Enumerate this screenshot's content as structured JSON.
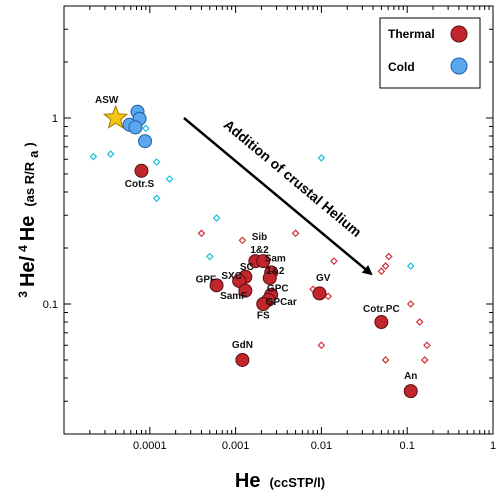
{
  "chart_data": {
    "type": "scatter",
    "x_scale": "log",
    "y_scale": "log",
    "xlim": [
      1e-05,
      1
    ],
    "ylim": [
      0.02,
      4
    ],
    "grid": false,
    "legend_position": "top-right",
    "x_ticks": [
      {
        "value": 0.0001,
        "label": "0.0001"
      },
      {
        "value": 0.001,
        "label": "0.001"
      },
      {
        "value": 0.01,
        "label": "0.01"
      },
      {
        "value": 0.1,
        "label": "0.1"
      },
      {
        "value": 1,
        "label": "1"
      }
    ],
    "y_ticks": [
      {
        "value": 0.1,
        "label": "0.1"
      },
      {
        "value": 1,
        "label": "1"
      }
    ],
    "xlabel": {
      "main": "He",
      "units": "(ccSTP/l)"
    },
    "ylabel": {
      "iso_a": "3",
      "he_a": "He/",
      "iso_b": "4",
      "he_b": "He",
      "units_open": "(as R/R",
      "units_sub": "a",
      "units_close": ")"
    },
    "legend": [
      {
        "label": "Thermal",
        "color": "#c0262b"
      },
      {
        "label": "Cold",
        "color": "#5aa7f0"
      }
    ],
    "asw": {
      "label": "ASW",
      "x": 4e-05,
      "y": 1.0,
      "color": "#f6c614"
    },
    "cold_points": [
      {
        "x": 7.2e-05,
        "y": 1.08
      },
      {
        "x": 7.6e-05,
        "y": 0.99
      },
      {
        "x": 5.8e-05,
        "y": 0.92
      },
      {
        "x": 6.8e-05,
        "y": 0.89
      },
      {
        "x": 8.8e-05,
        "y": 0.75
      }
    ],
    "thermal_points": [
      {
        "x": 8e-05,
        "y": 0.52,
        "label": "Cotr.S"
      },
      {
        "x": 0.0017,
        "y": 0.17,
        "label": ""
      },
      {
        "x": 0.0021,
        "y": 0.17,
        "label": ""
      },
      {
        "x": 0.0026,
        "y": 0.148,
        "label": ""
      },
      {
        "x": 0.0025,
        "y": 0.138,
        "label": ""
      },
      {
        "x": 0.0013,
        "y": 0.14,
        "label": ""
      },
      {
        "x": 0.0011,
        "y": 0.133,
        "label": ""
      },
      {
        "x": 0.0006,
        "y": 0.126,
        "label": ""
      },
      {
        "x": 0.0013,
        "y": 0.118,
        "label": ""
      },
      {
        "x": 0.0026,
        "y": 0.112,
        "label": ""
      },
      {
        "x": 0.0024,
        "y": 0.105,
        "label": ""
      },
      {
        "x": 0.0021,
        "y": 0.1,
        "label": ""
      },
      {
        "x": 0.0095,
        "y": 0.114,
        "label": ""
      },
      {
        "x": 0.05,
        "y": 0.08,
        "label": "Cotr.PC"
      },
      {
        "x": 0.0012,
        "y": 0.05,
        "label": "GdN"
      },
      {
        "x": 0.11,
        "y": 0.034,
        "label": "An"
      }
    ],
    "group_labels": [
      {
        "text": "Sib",
        "x": 0.0019,
        "y": 0.232
      },
      {
        "text": "1&2",
        "x": 0.0019,
        "y": 0.198
      },
      {
        "text": "Sam",
        "x": 0.0029,
        "y": 0.178
      },
      {
        "text": "1&2",
        "x": 0.0029,
        "y": 0.152
      },
      {
        "text": "SC",
        "x": 0.00135,
        "y": 0.16
      },
      {
        "text": "SXC",
        "x": 0.0009,
        "y": 0.143
      },
      {
        "text": "GPF",
        "x": 0.00045,
        "y": 0.137
      },
      {
        "text": "GPC",
        "x": 0.0031,
        "y": 0.123
      },
      {
        "text": "SamF",
        "x": 0.00095,
        "y": 0.112
      },
      {
        "text": "GPCar",
        "x": 0.0034,
        "y": 0.104
      },
      {
        "text": "FS",
        "x": 0.0021,
        "y": 0.088
      },
      {
        "text": "GV",
        "x": 0.0105,
        "y": 0.14
      }
    ],
    "cyan_diamonds": [
      {
        "x": 2.2e-05,
        "y": 0.62
      },
      {
        "x": 3.5e-05,
        "y": 0.64
      },
      {
        "x": 9e-05,
        "y": 0.88
      },
      {
        "x": 0.00012,
        "y": 0.58
      },
      {
        "x": 0.00017,
        "y": 0.47
      },
      {
        "x": 0.00012,
        "y": 0.37
      },
      {
        "x": 0.0006,
        "y": 0.29
      },
      {
        "x": 0.0005,
        "y": 0.18
      },
      {
        "x": 0.01,
        "y": 0.61
      },
      {
        "x": 0.11,
        "y": 0.16
      }
    ],
    "red_diamonds": [
      {
        "x": 0.0004,
        "y": 0.24
      },
      {
        "x": 0.0012,
        "y": 0.22
      },
      {
        "x": 0.005,
        "y": 0.24
      },
      {
        "x": 0.008,
        "y": 0.12
      },
      {
        "x": 0.012,
        "y": 0.11
      },
      {
        "x": 0.014,
        "y": 0.17
      },
      {
        "x": 0.01,
        "y": 0.06
      },
      {
        "x": 0.05,
        "y": 0.15
      },
      {
        "x": 0.056,
        "y": 0.16
      },
      {
        "x": 0.061,
        "y": 0.18
      },
      {
        "x": 0.056,
        "y": 0.05
      },
      {
        "x": 0.11,
        "y": 0.1
      },
      {
        "x": 0.14,
        "y": 0.08
      },
      {
        "x": 0.17,
        "y": 0.06
      },
      {
        "x": 0.16,
        "y": 0.05
      }
    ],
    "arrow": {
      "label": "Addition of crustal Helium",
      "from": {
        "x": 0.00025,
        "y": 1.0
      },
      "to": {
        "x": 0.038,
        "y": 0.145
      }
    }
  }
}
